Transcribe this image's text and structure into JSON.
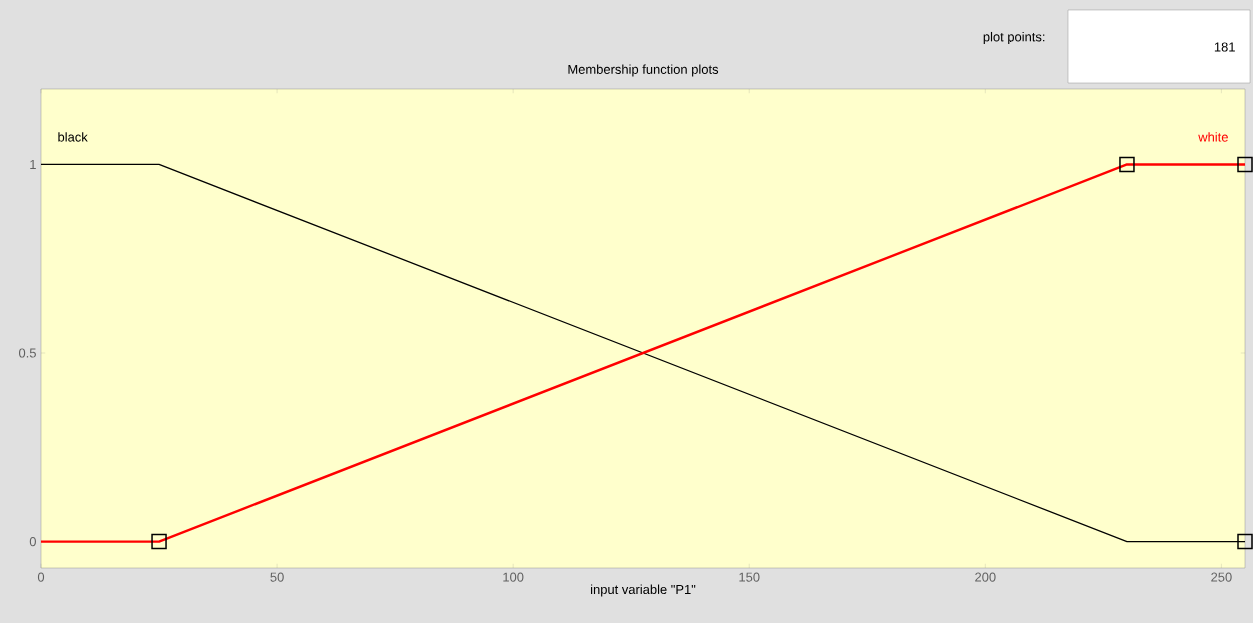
{
  "chart_data": {
    "type": "line",
    "title": "Membership function plots",
    "xlabel": "input variable \"P1\"",
    "xlim": [
      0,
      255
    ],
    "ylim": [
      -0.07,
      1.2
    ],
    "xticks": [
      0,
      50,
      100,
      150,
      200,
      250
    ],
    "yticks": [
      0,
      0.5,
      1
    ],
    "grid": false,
    "series": [
      {
        "name": "black",
        "color": "#000000",
        "x": [
          0,
          25,
          230,
          255
        ],
        "values": [
          1,
          1,
          0,
          0
        ]
      },
      {
        "name": "white",
        "color": "#ff0000",
        "x": [
          0,
          25,
          230,
          255
        ],
        "values": [
          0,
          0,
          1,
          1
        ]
      },
      {
        "type": "scatter",
        "marker": "square",
        "color": "#000000",
        "x": [
          25,
          230,
          255,
          255
        ],
        "values": [
          0,
          1,
          1,
          0
        ]
      }
    ],
    "annotations": [
      "plot points:",
      "181"
    ]
  }
}
